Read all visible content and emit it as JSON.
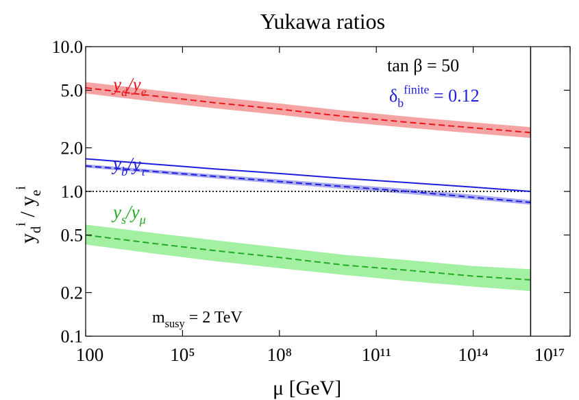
{
  "chart_data": {
    "type": "line",
    "title": "Yukawa ratios",
    "xlabel": [
      {
        "t": "μ"
      },
      {
        "t": "  [GeV]"
      }
    ],
    "ylabel": [
      {
        "t": "y"
      },
      {
        "t": "d",
        "sub": true
      },
      {
        "t": "i",
        "sup": true
      },
      {
        "t": " / y"
      },
      {
        "t": "e",
        "sub": true
      },
      {
        "t": "i",
        "sup": true
      }
    ],
    "xscale": "log",
    "yscale": "log",
    "xlim": [
      100,
      1e+17
    ],
    "ylim": [
      0.1,
      10
    ],
    "xticks": [
      100,
      {
        "value": 100000.0,
        "label": "10⁵"
      },
      {
        "value": 100000000.0,
        "label": "10⁸"
      },
      {
        "value": 100000000000.0,
        "label": "10¹¹"
      },
      {
        "value": 100000000000000.0,
        "label": "10¹⁴"
      },
      {
        "value": 1e+17,
        "label": "10¹⁷"
      }
    ],
    "yticks": [
      {
        "value": 10,
        "label": "10.0"
      },
      {
        "value": 5,
        "label": "5.0"
      },
      {
        "value": 2,
        "label": "2.0"
      },
      {
        "value": 1,
        "label": "1.0"
      },
      0.5,
      0.2,
      0.1
    ],
    "hline": 1,
    "vline": 6000000000000000.0,
    "x": [
      100,
      10000.0,
      1000000.0,
      100000000.0,
      10000000000.0,
      1000000000000.0,
      100000000000000.0,
      6000000000000000.0
    ],
    "series": [
      {
        "color": "#e8161a",
        "band_color": "#f6a3a3",
        "dash": true,
        "label": [
          {
            "t": "y"
          },
          {
            "t": "d",
            "sub": true
          },
          {
            "t": "/y"
          },
          {
            "t": "e",
            "sub": true
          }
        ],
        "values": [
          5.2,
          4.6,
          4.1,
          3.7,
          3.3,
          3.0,
          2.75,
          2.55
        ],
        "lower": [
          4.75,
          4.2,
          3.75,
          3.38,
          3.02,
          2.75,
          2.52,
          2.34
        ],
        "upper": [
          5.7,
          5.05,
          4.5,
          4.05,
          3.62,
          3.28,
          3.0,
          2.78
        ]
      },
      {
        "color": "#1d1ddb",
        "dash": false,
        "values": [
          1.68,
          1.55,
          1.43,
          1.33,
          1.23,
          1.15,
          1.07,
          1.0
        ]
      },
      {
        "color": "#1d1ddb",
        "band_color": "#aaaaf0",
        "dash": true,
        "label": [
          {
            "t": "y"
          },
          {
            "t": "b",
            "sub": true
          },
          {
            "t": "/y"
          },
          {
            "t": "τ",
            "sub": true
          }
        ],
        "values": [
          1.5,
          1.38,
          1.27,
          1.17,
          1.08,
          1.0,
          0.91,
          0.84
        ],
        "lower": [
          1.46,
          1.34,
          1.23,
          1.13,
          1.04,
          0.96,
          0.88,
          0.81
        ],
        "upper": [
          1.54,
          1.42,
          1.31,
          1.21,
          1.12,
          1.04,
          0.95,
          0.87
        ]
      },
      {
        "color": "#22aa22",
        "band_color": "#a3f0a3",
        "dash": true,
        "label": [
          {
            "t": "y"
          },
          {
            "t": "s",
            "sub": true
          },
          {
            "t": "/y"
          },
          {
            "t": "μ",
            "sub": true
          }
        ],
        "values": [
          0.5,
          0.44,
          0.39,
          0.35,
          0.31,
          0.285,
          0.26,
          0.245
        ],
        "lower": [
          0.43,
          0.375,
          0.33,
          0.295,
          0.265,
          0.24,
          0.22,
          0.205
        ],
        "upper": [
          0.59,
          0.52,
          0.46,
          0.41,
          0.365,
          0.335,
          0.305,
          0.29
        ]
      }
    ],
    "annotations": [
      [
        {
          "t": "tan β = 50"
        }
      ],
      [
        {
          "t": "δ"
        },
        {
          "t": "b",
          "sub": true
        },
        {
          "t": "finite",
          "sup": true
        },
        {
          "t": " = 0.12"
        }
      ],
      [
        {
          "t": "m"
        },
        {
          "t": "susy",
          "sub": true
        },
        {
          "t": " = 2 TeV"
        }
      ]
    ]
  }
}
